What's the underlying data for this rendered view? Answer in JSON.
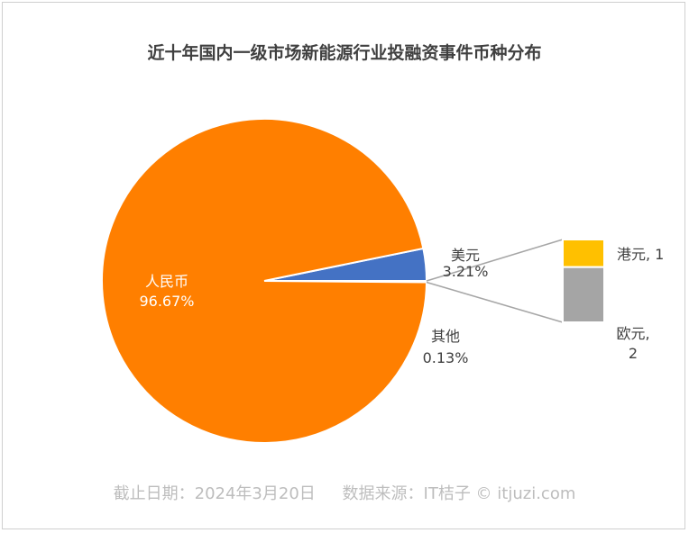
{
  "title": "近十年国内一级市场新能源行业投融资事件币种分布",
  "footer": {
    "date": "截止日期：2024年3月20日",
    "source": "数据来源：IT桔子 © itjuzi.com"
  },
  "colors": {
    "rmb": "#ff7f00",
    "usd": "#4472c4",
    "other": "#ffc000",
    "hkd": "#ffc000",
    "eur": "#a5a5a5",
    "connector": "#a6a6a6"
  },
  "chart_data": {
    "type": "pie",
    "title": "近十年国内一级市场新能源行业投融资事件币种分布",
    "pie": {
      "slices": [
        {
          "name": "人民币",
          "value": 96.67,
          "value_label": "96.67%"
        },
        {
          "name": "美元",
          "value": 3.21,
          "value_label": "3.21%"
        },
        {
          "name": "其他",
          "value": 0.13,
          "value_label": "0.13%"
        }
      ]
    },
    "other_breakdown": {
      "type": "bar",
      "categories": [
        "港元",
        "欧元"
      ],
      "values": [
        1,
        2
      ],
      "labels": [
        "港元, 1",
        "欧元,",
        "2"
      ]
    }
  }
}
